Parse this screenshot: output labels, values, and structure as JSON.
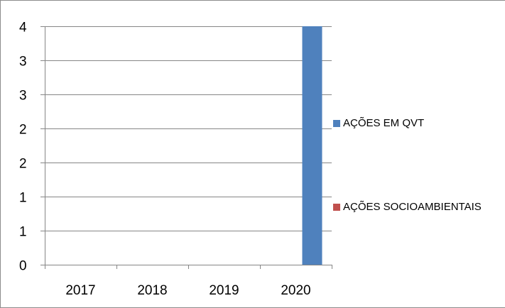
{
  "chart_data": {
    "type": "bar",
    "categories": [
      "2017",
      "2018",
      "2019",
      "2020"
    ],
    "series": [
      {
        "name": "AÇÕES EM QVT",
        "values": [
          0,
          0,
          0,
          3.5
        ],
        "color": "#4f81bd"
      },
      {
        "name": "AÇÕES SOCIOAMBIENTAIS",
        "values": [
          0,
          0,
          0,
          0
        ],
        "color": "#c0504d"
      }
    ],
    "y_ticks": [
      {
        "value": 0,
        "label": "0"
      },
      {
        "value": 0.5,
        "label": "1"
      },
      {
        "value": 1,
        "label": "1"
      },
      {
        "value": 1.5,
        "label": "2"
      },
      {
        "value": 2,
        "label": "2"
      },
      {
        "value": 2.5,
        "label": "3"
      },
      {
        "value": 3,
        "label": "3"
      },
      {
        "value": 3.5,
        "label": "4"
      }
    ],
    "ylim": [
      0,
      3.5
    ],
    "grid": true,
    "legend_position": "right"
  }
}
